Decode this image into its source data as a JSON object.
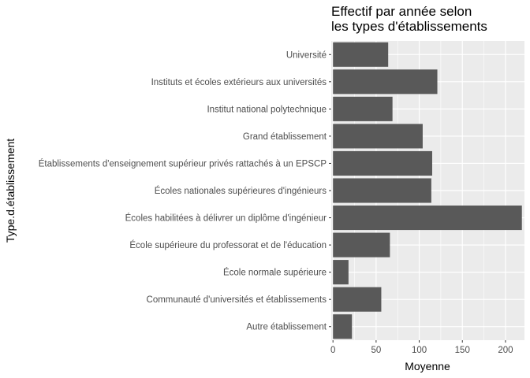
{
  "chart_data": {
    "type": "bar",
    "orientation": "horizontal",
    "title_lines": [
      "Effectif par année selon",
      "les types d'établissements"
    ],
    "xlabel": "Moyenne",
    "ylabel": "Type.d.établissement",
    "categories": [
      "Université",
      "Instituts et écoles extérieurs aux universités",
      "Institut national polytechnique",
      "Grand établissement",
      "Établissements d'enseignement supérieur privés rattachés à un EPSCP",
      "Écoles nationales supérieures d'ingénieurs",
      "Écoles habilitées à délivrer un diplôme d'ingénieur",
      "École supérieure du professorat et de l'éducation",
      "École normale supérieure",
      "Communauté d'universités et établissements",
      "Autre établissement"
    ],
    "values": [
      64,
      121,
      69,
      104,
      115,
      114,
      219,
      66,
      18,
      56,
      22
    ],
    "xlim": [
      -2,
      222
    ],
    "xticks": [
      0,
      50,
      100,
      150,
      200
    ],
    "grid": true,
    "bar_color": "#595959",
    "panel_color": "#ebebeb",
    "grid_color": "#ffffff"
  }
}
